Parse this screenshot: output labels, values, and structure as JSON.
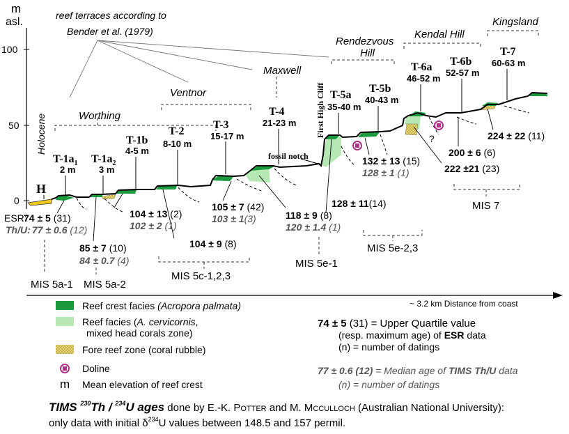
{
  "axis": {
    "unit_top": "m",
    "unit_bottom": "asl.",
    "ticks": [
      "100",
      "50",
      "0"
    ],
    "distance_label": "~ 3.2 km Distance from coast"
  },
  "annotations": {
    "reef_terraces_line1": "reef terraces according to",
    "bender": "Bender",
    "reef_terraces_tail": " et al. (1979)",
    "holocene": "Holocene",
    "worthing": "Worthing",
    "ventnor": "Ventnor",
    "maxwell": "Maxwell",
    "rendezvous_line1": "Rendezvous",
    "rendezvous_line2": "Hill",
    "kendal": "Kendal Hill",
    "kingsland": "Kingsland",
    "fossil_notch": "fossil notch",
    "first_high_cliff": "First High Cliff",
    "question": "?"
  },
  "terraces": {
    "H": {
      "name": "H"
    },
    "T1a1": {
      "name": "T-1a",
      "sub": "1",
      "elev": "2 m"
    },
    "T1a2": {
      "name": "T-1a",
      "sub": "2",
      "elev": "3 m"
    },
    "T1b": {
      "name": "T-1b",
      "elev": "4-5 m"
    },
    "T2": {
      "name": "T-2",
      "elev": "8-10 m"
    },
    "T3": {
      "name": "T-3",
      "elev": "15-17 m"
    },
    "T4": {
      "name": "T-4",
      "elev": "21-23 m"
    },
    "T5a": {
      "name": "T-5a",
      "elev": "35-40 m"
    },
    "T5b": {
      "name": "T-5b",
      "elev": "40-43 m"
    },
    "T6a": {
      "name": "T-6a",
      "elev": "46-52 m"
    },
    "T6b": {
      "name": "T-6b",
      "elev": "52-57 m"
    },
    "T7": {
      "name": "T-7",
      "elev": "60-63 m"
    }
  },
  "ages": {
    "esr_label": "ESR:",
    "thu_label": "Th/U:",
    "a74": {
      "val": "74 ± 5",
      "n": " (31)"
    },
    "a77": {
      "val": "77 ± 0.6",
      "n": " (12)"
    },
    "a85": {
      "val": "85 ± 7",
      "n": " (10)"
    },
    "a84": {
      "val": "84 ± 0.7",
      "n": " (4)"
    },
    "a104a": {
      "val": "104 ± 13",
      "n": " (2)"
    },
    "a102": {
      "val": "102 ± 2",
      "n": " (1)"
    },
    "a104b": {
      "val": "104 ± 9",
      "n": " (8)"
    },
    "a105": {
      "val": "105 ± 7",
      "n": " (42)"
    },
    "a103": {
      "val": "103 ± 1",
      "n": "(3)"
    },
    "a118": {
      "val": "118 ± 9",
      "n": " (8)"
    },
    "a120": {
      "val": "120 ± 1.4",
      "n": " (1)"
    },
    "a128": {
      "val": "128 ± 11",
      "n": "(14)"
    },
    "a132": {
      "val": "132 ± 13",
      "n": " (15)"
    },
    "a128b": {
      "val": "128 ± 1",
      "n": " (1)"
    },
    "a222": {
      "val": "222 ±21",
      "n": " (23)"
    },
    "a200": {
      "val": "200 ± 6",
      "n": " (6)"
    },
    "a224": {
      "val": "224 ± 22",
      "n": " (11)"
    }
  },
  "mis": {
    "m5a1": "MIS 5a-1",
    "m5a2": "MIS 5a-2",
    "m5c": "MIS 5c-1,2,3",
    "m5e1": "MIS 5e-1",
    "m5e23": "MIS 5e-2,3",
    "m7": "MIS 7"
  },
  "legend": {
    "crest_prefix": "Reef crest facies ",
    "crest_species": "(Acropora palmata)",
    "facies_l1_prefix": "Reef facies (",
    "facies_l1_species": "A. cervicornis",
    "facies_l1_suffix": ",",
    "facies_l2": "mixed head corals zone)",
    "fore": "Fore reef zone (coral rubble)",
    "doline": "Doline",
    "mean_symbol": "m",
    "mean": "Mean elevation of reef crest",
    "esr_example": "74 ± 5",
    "esr_def_l1": " (31) = Upper Quartile value",
    "esr_def_l2_prefix": "(resp. maximum age) of ",
    "esr_def_l2_bold": "ESR",
    "esr_def_l2_suffix": " data",
    "esr_def_l3": "(n) = number of datings",
    "thu_example": "77 ± 0.6 (12)",
    "thu_def_l1_prefix": " = Median age of ",
    "thu_def_l1_bold": "TIMS Th/U",
    "thu_def_l1_suffix": " data",
    "thu_def_l2": "(n) = number of datings"
  },
  "footer": {
    "tims": "TIMS ",
    "sup230": "230",
    "th": "Th / ",
    "sup234": "234",
    "u_ages": "U ages",
    "done_by": " done by E.-K. P",
    "potter_sc": "OTTER",
    "and_m": " and M. M",
    "mc": "C",
    "culloch_sc": "CULLOCH",
    "anu": " (Australian National University):",
    "line2_a": "only data with initial δ",
    "line2_sup": "234",
    "line2_b": "U values between 148.5 and 157 permil."
  },
  "colors": {
    "crest": "#1a9a3c",
    "facies": "#b6e8b4",
    "fore": "#e0d070",
    "holocene": "#f2c81a",
    "doline": "#b0338a"
  }
}
